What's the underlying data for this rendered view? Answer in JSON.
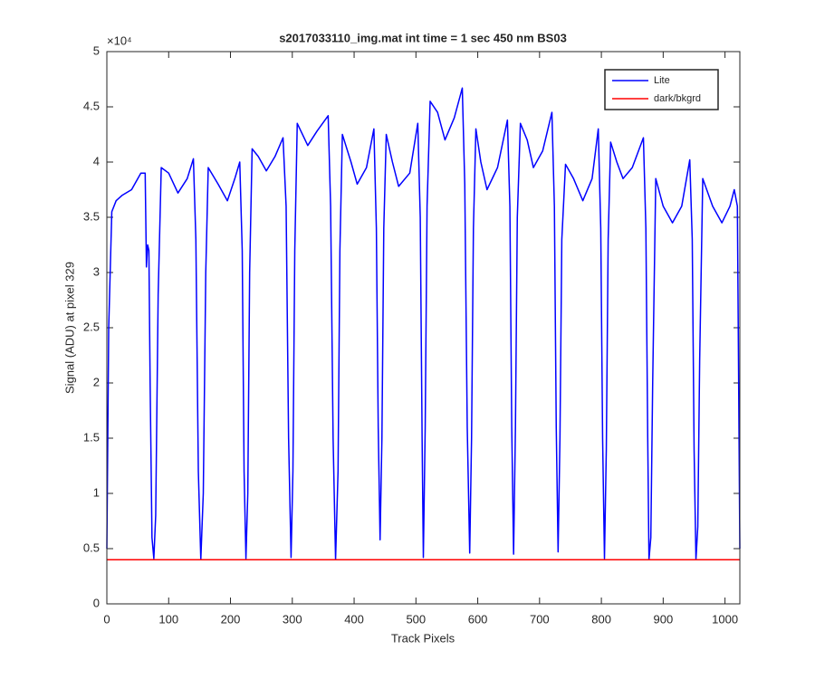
{
  "chart_data": {
    "type": "line",
    "title": "s2017033110_img.mat int time = 1 sec  450 nm BS03",
    "x_label": "Track Pixels",
    "y_label": "Signal (ADU) at pixel 329",
    "y_exponent": "×10⁴",
    "xlim": [
      0,
      1024
    ],
    "xticks": [
      0,
      100,
      200,
      300,
      400,
      500,
      600,
      700,
      800,
      900,
      1000
    ],
    "ylim": [
      0,
      5
    ],
    "yticks": [
      0,
      0.5,
      1,
      1.5,
      2,
      2.5,
      3,
      3.5,
      4,
      4.5,
      5
    ],
    "legend": "top-right",
    "series": [
      {
        "name": "Lite",
        "color": "#0000ff",
        "x": [
          0,
          3,
          8,
          15,
          25,
          40,
          55,
          62,
          64,
          66,
          68,
          70,
          73,
          76,
          79,
          83,
          88,
          100,
          115,
          130,
          140,
          144,
          148,
          152,
          156,
          160,
          164,
          180,
          195,
          207,
          215,
          219,
          222,
          225,
          228,
          231,
          235,
          245,
          258,
          272,
          285,
          290,
          294,
          298,
          301,
          304,
          308,
          325,
          340,
          358,
          362,
          366,
          370,
          374,
          377,
          381,
          395,
          405,
          420,
          432,
          436,
          439,
          442,
          445,
          448,
          452,
          462,
          472,
          490,
          503,
          507,
          510,
          512,
          515,
          518,
          523,
          535,
          547,
          562,
          575,
          579,
          583,
          587,
          590,
          593,
          597,
          605,
          615,
          632,
          648,
          652,
          655,
          658,
          661,
          664,
          669,
          680,
          690,
          705,
          720,
          724,
          727,
          730,
          733,
          736,
          742,
          755,
          770,
          785,
          795,
          799,
          802,
          805,
          808,
          811,
          815,
          825,
          835,
          850,
          868,
          872,
          875,
          877,
          880,
          883,
          888,
          900,
          915,
          930,
          943,
          947,
          950,
          953,
          956,
          959,
          964,
          980,
          995,
          1008,
          1015,
          1020,
          1024
        ],
        "values": [
          0.5,
          2.5,
          3.55,
          3.65,
          3.7,
          3.75,
          3.9,
          3.9,
          3.05,
          3.25,
          3.2,
          2.0,
          0.6,
          0.41,
          0.8,
          2.8,
          3.95,
          3.9,
          3.72,
          3.85,
          4.03,
          3.3,
          1.2,
          0.4,
          1.0,
          3.0,
          3.95,
          3.8,
          3.65,
          3.85,
          4.0,
          3.2,
          1.2,
          0.41,
          1.0,
          3.0,
          4.12,
          4.05,
          3.92,
          4.05,
          4.22,
          3.6,
          1.5,
          0.42,
          1.2,
          3.2,
          4.35,
          4.15,
          4.28,
          4.42,
          3.6,
          1.5,
          0.4,
          1.2,
          3.2,
          4.25,
          4.0,
          3.8,
          3.95,
          4.3,
          3.4,
          1.6,
          0.58,
          1.5,
          3.4,
          4.25,
          4.0,
          3.78,
          3.9,
          4.35,
          3.5,
          1.5,
          0.42,
          1.6,
          3.6,
          4.55,
          4.45,
          4.2,
          4.4,
          4.67,
          3.8,
          1.6,
          0.46,
          1.5,
          3.4,
          4.3,
          4.0,
          3.75,
          3.95,
          4.38,
          3.6,
          1.6,
          0.45,
          1.6,
          3.5,
          4.35,
          4.2,
          3.95,
          4.1,
          4.45,
          3.6,
          1.6,
          0.47,
          1.5,
          3.3,
          3.98,
          3.85,
          3.65,
          3.85,
          4.3,
          3.4,
          1.5,
          0.41,
          1.4,
          3.3,
          4.18,
          4.0,
          3.85,
          3.95,
          4.22,
          3.4,
          1.5,
          0.4,
          0.6,
          2.0,
          3.85,
          3.6,
          3.45,
          3.6,
          4.02,
          3.3,
          1.4,
          0.4,
          0.7,
          2.2,
          3.85,
          3.6,
          3.45,
          3.6,
          3.75,
          3.6,
          0.5
        ]
      },
      {
        "name": "dark/bkgrd",
        "color": "#ff0000",
        "x": [
          0,
          1024
        ],
        "values": [
          0.4,
          0.4
        ]
      }
    ]
  }
}
